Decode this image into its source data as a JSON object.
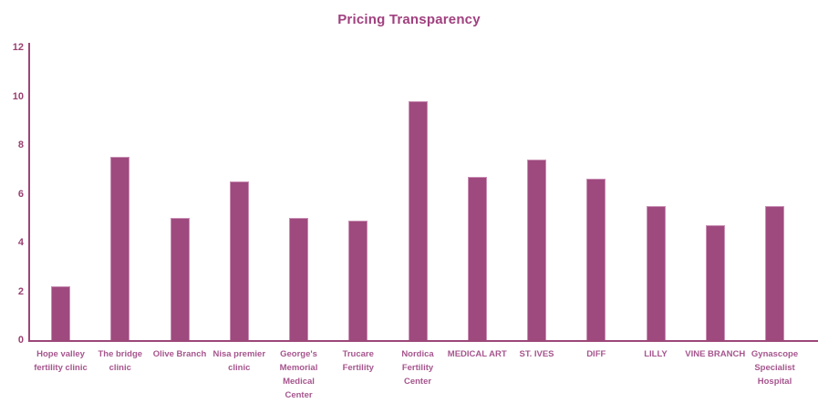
{
  "chart_data": {
    "type": "bar",
    "title": "Pricing Transparency",
    "categories": [
      "Hope valley fertility clinic",
      "The bridge clinic",
      "Olive Branch",
      "Nisa premier clinic",
      "George's Memorial Medical Center",
      "Trucare Fertility",
      "Nordica Fertility Center",
      "MEDICAL ART",
      "ST. IVES",
      "DIFF",
      "LILLY",
      "VINE BRANCH",
      "Gynascope Specialist Hospital"
    ],
    "values": [
      2.2,
      7.5,
      5.0,
      6.5,
      5.0,
      4.9,
      9.8,
      6.7,
      7.4,
      6.6,
      5.5,
      4.7,
      5.5
    ],
    "xlabel": "",
    "ylabel": "",
    "ylim": [
      0,
      12
    ],
    "yticks": [
      0,
      2,
      4,
      6,
      8,
      10,
      12
    ],
    "grid": false,
    "legend": "none",
    "colors": {
      "bar_fill": "#9E4A7E",
      "bar_edge": "#C98FB4",
      "axis": "#9C4778",
      "title_text": "#A0417F",
      "y_tick_text": "#9A4072",
      "category_text": "#A6568E"
    }
  }
}
